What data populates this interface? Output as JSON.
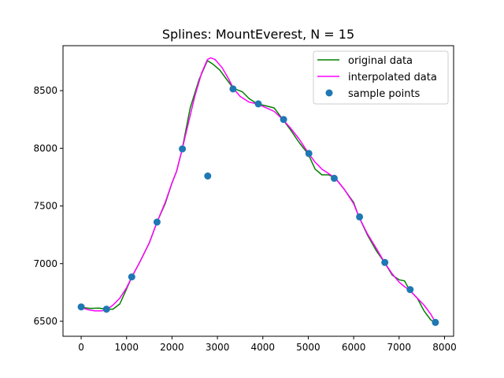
{
  "chart_data": {
    "type": "line",
    "title": "Splines: MountEverest, N = 15",
    "xlabel": "",
    "ylabel": "",
    "xlim": [
      -400,
      8200
    ],
    "ylim": [
      6370,
      8890
    ],
    "x_ticks": [
      0,
      1000,
      2000,
      3000,
      4000,
      5000,
      6000,
      7000,
      8000
    ],
    "y_ticks": [
      6500,
      7000,
      7500,
      8000,
      8500
    ],
    "grid": false,
    "legend_position": "top-right",
    "series": [
      {
        "name": "original data",
        "kind": "line",
        "color": "#008000",
        "x": [
          0,
          200,
          400,
          550,
          700,
          850,
          1000,
          1110,
          1300,
          1500,
          1670,
          1850,
          2000,
          2100,
          2220,
          2400,
          2600,
          2780,
          2900,
          3050,
          3200,
          3350,
          3550,
          3700,
          3880,
          4050,
          4250,
          4440,
          4600,
          4800,
          5000,
          5150,
          5300,
          5450,
          5600,
          5800,
          6000,
          6110,
          6300,
          6500,
          6680,
          6850,
          7000,
          7120,
          7230,
          7400,
          7550,
          7700,
          7800
        ],
        "y": [
          6620,
          6612,
          6614,
          6605,
          6605,
          6650,
          6780,
          6880,
          7020,
          7180,
          7360,
          7520,
          7700,
          7800,
          7985,
          8350,
          8600,
          8760,
          8730,
          8680,
          8600,
          8520,
          8490,
          8430,
          8385,
          8370,
          8350,
          8250,
          8165,
          8050,
          7950,
          7820,
          7770,
          7770,
          7740,
          7640,
          7530,
          7410,
          7250,
          7110,
          7010,
          6900,
          6860,
          6850,
          6770,
          6700,
          6590,
          6510,
          6490
        ]
      },
      {
        "name": "interpolated data",
        "kind": "line",
        "color": "#ff00ff",
        "x": [
          0,
          150,
          300,
          450,
          560,
          700,
          850,
          1000,
          1110,
          1300,
          1500,
          1670,
          1850,
          2000,
          2100,
          2220,
          2350,
          2500,
          2650,
          2780,
          2850,
          2950,
          3100,
          3250,
          3350,
          3500,
          3700,
          3880,
          4050,
          4250,
          4440,
          4600,
          4800,
          5000,
          5150,
          5300,
          5450,
          5600,
          5800,
          6000,
          6110,
          6300,
          6500,
          6680,
          6850,
          7000,
          7120,
          7230,
          7400,
          7550,
          7700,
          7800
        ],
        "y": [
          6620,
          6600,
          6590,
          6590,
          6600,
          6640,
          6700,
          6790,
          6880,
          7020,
          7180,
          7360,
          7530,
          7700,
          7800,
          7985,
          8200,
          8450,
          8650,
          8770,
          8785,
          8770,
          8700,
          8600,
          8520,
          8450,
          8400,
          8385,
          8355,
          8320,
          8250,
          8180,
          8080,
          7960,
          7880,
          7820,
          7780,
          7740,
          7640,
          7520,
          7410,
          7260,
          7130,
          7010,
          6910,
          6840,
          6800,
          6770,
          6700,
          6640,
          6560,
          6490
        ]
      },
      {
        "name": "sample points",
        "kind": "scatter",
        "color": "#1f77b4",
        "x": [
          0,
          557,
          1114,
          1671,
          2229,
          2786,
          3343,
          3900,
          4457,
          5014,
          5571,
          6129,
          6686,
          7243,
          7800
        ],
        "y": [
          6625,
          6605,
          6885,
          7360,
          7995,
          7760,
          8515,
          8385,
          8250,
          7955,
          7740,
          7405,
          7010,
          6775,
          6490
        ]
      }
    ]
  }
}
